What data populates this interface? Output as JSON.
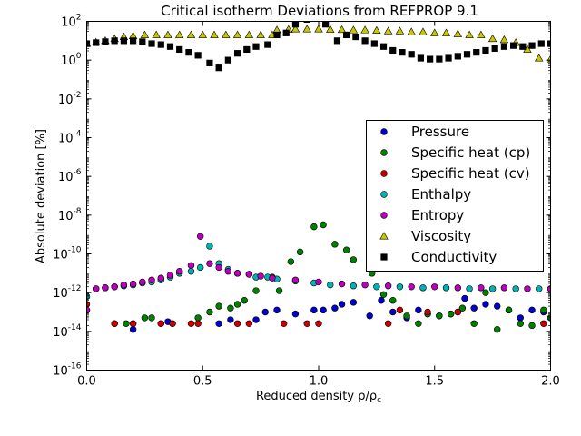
{
  "chart_data": {
    "type": "scatter",
    "title": "Critical isotherm Deviations from REFPROP 9.1",
    "xlabel": "Reduced density ρ/ρ",
    "xlabel_sub": "c",
    "ylabel": "Absolute deviation [%]",
    "xlim": [
      0.0,
      2.0
    ],
    "ylim_log10": [
      -16,
      2
    ],
    "y_scale": "log",
    "x_ticks": [
      "0.0",
      "0.5",
      "1.0",
      "1.5",
      "2.0"
    ],
    "y_ticks": [
      {
        "base": "10",
        "exp": "2"
      },
      {
        "base": "10",
        "exp": "0"
      },
      {
        "base": "10",
        "exp": "-2"
      },
      {
        "base": "10",
        "exp": "-4"
      },
      {
        "base": "10",
        "exp": "-6"
      },
      {
        "base": "10",
        "exp": "-8"
      },
      {
        "base": "10",
        "exp": "-10"
      },
      {
        "base": "10",
        "exp": "-12"
      },
      {
        "base": "10",
        "exp": "-14"
      },
      {
        "base": "10",
        "exp": "-16"
      }
    ],
    "legend_position": "right",
    "series": [
      {
        "name": "Pressure",
        "color": "#0000cc",
        "marker": "circle",
        "points": [
          [
            0.0,
            -12.9
          ],
          [
            0.2,
            -13.9
          ],
          [
            0.35,
            -13.5
          ],
          [
            0.57,
            -13.6
          ],
          [
            0.62,
            -13.4
          ],
          [
            0.73,
            -13.4
          ],
          [
            0.77,
            -13.0
          ],
          [
            0.82,
            -12.9
          ],
          [
            0.9,
            -13.1
          ],
          [
            0.98,
            -12.9
          ],
          [
            1.02,
            -12.9
          ],
          [
            1.07,
            -12.8
          ],
          [
            1.1,
            -12.6
          ],
          [
            1.15,
            -12.5
          ],
          [
            1.22,
            -13.2
          ],
          [
            1.27,
            -12.4
          ],
          [
            1.32,
            -13.0
          ],
          [
            1.38,
            -13.3
          ],
          [
            1.43,
            -12.9
          ],
          [
            1.47,
            -13.1
          ],
          [
            1.52,
            -13.2
          ],
          [
            1.57,
            -13.1
          ],
          [
            1.6,
            -13.0
          ],
          [
            1.63,
            -12.3
          ],
          [
            1.67,
            -12.8
          ],
          [
            1.72,
            -12.6
          ],
          [
            1.77,
            -12.7
          ],
          [
            1.82,
            -12.9
          ],
          [
            1.87,
            -13.3
          ],
          [
            1.92,
            -12.9
          ],
          [
            1.97,
            -13.0
          ],
          [
            2.0,
            -13.3
          ]
        ]
      },
      {
        "name": "Specific heat (cp)",
        "color": "#008000",
        "marker": "circle",
        "points": [
          [
            0.0,
            -12.2
          ],
          [
            0.12,
            -13.6
          ],
          [
            0.17,
            -13.6
          ],
          [
            0.2,
            -13.6
          ],
          [
            0.25,
            -13.3
          ],
          [
            0.28,
            -13.3
          ],
          [
            0.32,
            -13.6
          ],
          [
            0.37,
            -13.6
          ],
          [
            0.48,
            -13.3
          ],
          [
            0.53,
            -13.0
          ],
          [
            0.57,
            -12.7
          ],
          [
            0.62,
            -12.8
          ],
          [
            0.65,
            -12.6
          ],
          [
            0.68,
            -12.4
          ],
          [
            0.73,
            -11.9
          ],
          [
            0.8,
            -11.2
          ],
          [
            0.83,
            -11.9
          ],
          [
            0.88,
            -10.4
          ],
          [
            0.92,
            -9.9
          ],
          [
            0.98,
            -8.6
          ],
          [
            1.02,
            -8.5
          ],
          [
            1.07,
            -9.5
          ],
          [
            1.12,
            -9.8
          ],
          [
            1.15,
            -10.3
          ],
          [
            1.23,
            -11.0
          ],
          [
            1.28,
            -12.1
          ],
          [
            1.32,
            -12.4
          ],
          [
            1.38,
            -13.2
          ],
          [
            1.43,
            -13.6
          ],
          [
            1.47,
            -13.1
          ],
          [
            1.52,
            -13.2
          ],
          [
            1.57,
            -13.1
          ],
          [
            1.62,
            -12.8
          ],
          [
            1.67,
            -13.6
          ],
          [
            1.72,
            -12.0
          ],
          [
            1.77,
            -13.9
          ],
          [
            1.82,
            -12.9
          ],
          [
            1.87,
            -13.6
          ],
          [
            1.92,
            -13.7
          ],
          [
            1.97,
            -12.9
          ],
          [
            2.0,
            -13.3
          ]
        ]
      },
      {
        "name": "Specific heat (cv)",
        "color": "#cc0000",
        "marker": "circle",
        "points": [
          [
            0.0,
            -12.6
          ],
          [
            0.12,
            -13.6
          ],
          [
            0.2,
            -13.6
          ],
          [
            0.32,
            -13.6
          ],
          [
            0.37,
            -13.6
          ],
          [
            0.45,
            -13.6
          ],
          [
            0.48,
            -13.6
          ],
          [
            0.65,
            -13.6
          ],
          [
            0.7,
            -13.6
          ],
          [
            0.85,
            -13.6
          ],
          [
            0.95,
            -13.6
          ],
          [
            1.0,
            -13.6
          ],
          [
            1.3,
            -13.6
          ],
          [
            1.35,
            -12.9
          ],
          [
            1.47,
            -13.0
          ],
          [
            1.6,
            -13.0
          ],
          [
            1.97,
            -13.6
          ]
        ]
      },
      {
        "name": "Enthalpy",
        "color": "#00b3b3",
        "marker": "circle",
        "points": [
          [
            0.0,
            -12.2
          ],
          [
            0.04,
            -11.8
          ],
          [
            0.08,
            -11.75
          ],
          [
            0.12,
            -11.7
          ],
          [
            0.16,
            -11.65
          ],
          [
            0.2,
            -11.6
          ],
          [
            0.24,
            -11.5
          ],
          [
            0.28,
            -11.45
          ],
          [
            0.32,
            -11.35
          ],
          [
            0.36,
            -11.2
          ],
          [
            0.4,
            -11.0
          ],
          [
            0.45,
            -10.9
          ],
          [
            0.49,
            -10.7
          ],
          [
            0.53,
            -9.6
          ],
          [
            0.57,
            -10.5
          ],
          [
            0.61,
            -10.8
          ],
          [
            0.65,
            -11.0
          ],
          [
            0.7,
            -11.05
          ],
          [
            0.73,
            -11.2
          ],
          [
            0.78,
            -11.2
          ],
          [
            0.82,
            -11.3
          ],
          [
            0.9,
            -11.4
          ],
          [
            0.98,
            -11.5
          ],
          [
            1.05,
            -11.6
          ],
          [
            1.15,
            -11.65
          ],
          [
            1.25,
            -11.7
          ],
          [
            1.35,
            -11.7
          ],
          [
            1.45,
            -11.75
          ],
          [
            1.55,
            -11.75
          ],
          [
            1.65,
            -11.8
          ],
          [
            1.75,
            -11.8
          ],
          [
            1.85,
            -11.8
          ],
          [
            1.95,
            -11.8
          ],
          [
            2.0,
            -11.8
          ]
        ]
      },
      {
        "name": "Entropy",
        "color": "#bb00bb",
        "marker": "circle",
        "points": [
          [
            0.0,
            -12.9
          ],
          [
            0.04,
            -11.8
          ],
          [
            0.08,
            -11.75
          ],
          [
            0.12,
            -11.7
          ],
          [
            0.16,
            -11.6
          ],
          [
            0.2,
            -11.55
          ],
          [
            0.24,
            -11.45
          ],
          [
            0.28,
            -11.35
          ],
          [
            0.32,
            -11.25
          ],
          [
            0.36,
            -11.1
          ],
          [
            0.4,
            -10.9
          ],
          [
            0.45,
            -10.6
          ],
          [
            0.49,
            -9.1
          ],
          [
            0.53,
            -10.5
          ],
          [
            0.57,
            -10.7
          ],
          [
            0.61,
            -10.9
          ],
          [
            0.65,
            -11.0
          ],
          [
            0.7,
            -11.05
          ],
          [
            0.75,
            -11.15
          ],
          [
            0.8,
            -11.25
          ],
          [
            0.9,
            -11.35
          ],
          [
            1.0,
            -11.45
          ],
          [
            1.1,
            -11.55
          ],
          [
            1.2,
            -11.6
          ],
          [
            1.3,
            -11.65
          ],
          [
            1.4,
            -11.7
          ],
          [
            1.5,
            -11.7
          ],
          [
            1.6,
            -11.75
          ],
          [
            1.7,
            -11.75
          ],
          [
            1.8,
            -11.75
          ],
          [
            1.9,
            -11.8
          ],
          [
            2.0,
            -11.8
          ]
        ]
      },
      {
        "name": "Viscosity",
        "color": "#c8c800",
        "marker": "triangle",
        "points": [
          [
            0.0,
            0.85
          ],
          [
            0.04,
            0.92
          ],
          [
            0.08,
            1.0
          ],
          [
            0.12,
            1.1
          ],
          [
            0.16,
            1.2
          ],
          [
            0.2,
            1.25
          ],
          [
            0.25,
            1.3
          ],
          [
            0.3,
            1.3
          ],
          [
            0.35,
            1.3
          ],
          [
            0.4,
            1.3
          ],
          [
            0.45,
            1.3
          ],
          [
            0.5,
            1.3
          ],
          [
            0.55,
            1.3
          ],
          [
            0.6,
            1.3
          ],
          [
            0.65,
            1.3
          ],
          [
            0.7,
            1.3
          ],
          [
            0.75,
            1.3
          ],
          [
            0.8,
            1.3
          ],
          [
            0.82,
            1.55
          ],
          [
            0.87,
            1.58
          ],
          [
            0.9,
            1.6
          ],
          [
            0.95,
            1.6
          ],
          [
            1.0,
            1.6
          ],
          [
            1.05,
            1.58
          ],
          [
            1.1,
            1.57
          ],
          [
            1.15,
            1.55
          ],
          [
            1.2,
            1.55
          ],
          [
            1.25,
            1.53
          ],
          [
            1.3,
            1.5
          ],
          [
            1.35,
            1.5
          ],
          [
            1.4,
            1.45
          ],
          [
            1.45,
            1.45
          ],
          [
            1.5,
            1.4
          ],
          [
            1.55,
            1.4
          ],
          [
            1.6,
            1.35
          ],
          [
            1.65,
            1.3
          ],
          [
            1.7,
            1.3
          ],
          [
            1.75,
            1.1
          ],
          [
            1.8,
            1.05
          ],
          [
            1.85,
            0.9
          ],
          [
            1.9,
            0.55
          ],
          [
            1.95,
            0.1
          ],
          [
            2.0,
            0.05
          ]
        ]
      },
      {
        "name": "Conductivity",
        "color": "#000000",
        "marker": "square",
        "points": [
          [
            0.0,
            0.85
          ],
          [
            0.04,
            0.9
          ],
          [
            0.08,
            0.95
          ],
          [
            0.12,
            1.0
          ],
          [
            0.16,
            1.0
          ],
          [
            0.2,
            1.0
          ],
          [
            0.24,
            0.95
          ],
          [
            0.28,
            0.85
          ],
          [
            0.32,
            0.8
          ],
          [
            0.36,
            0.7
          ],
          [
            0.4,
            0.55
          ],
          [
            0.44,
            0.4
          ],
          [
            0.48,
            0.25
          ],
          [
            0.53,
            -0.15
          ],
          [
            0.57,
            -0.4
          ],
          [
            0.61,
            0.0
          ],
          [
            0.65,
            0.35
          ],
          [
            0.69,
            0.55
          ],
          [
            0.73,
            0.7
          ],
          [
            0.78,
            0.8
          ],
          [
            0.82,
            1.3
          ],
          [
            0.86,
            1.4
          ],
          [
            0.9,
            1.85
          ],
          [
            0.95,
            2.1
          ],
          [
            1.0,
            2.2
          ],
          [
            1.03,
            1.85
          ],
          [
            1.08,
            1.0
          ],
          [
            1.12,
            1.3
          ],
          [
            1.16,
            1.2
          ],
          [
            1.2,
            1.0
          ],
          [
            1.24,
            0.85
          ],
          [
            1.28,
            0.7
          ],
          [
            1.32,
            0.5
          ],
          [
            1.36,
            0.4
          ],
          [
            1.4,
            0.3
          ],
          [
            1.44,
            0.1
          ],
          [
            1.48,
            0.05
          ],
          [
            1.52,
            0.05
          ],
          [
            1.56,
            0.1
          ],
          [
            1.6,
            0.2
          ],
          [
            1.64,
            0.3
          ],
          [
            1.68,
            0.4
          ],
          [
            1.72,
            0.5
          ],
          [
            1.76,
            0.6
          ],
          [
            1.8,
            0.7
          ],
          [
            1.84,
            0.75
          ],
          [
            1.88,
            0.7
          ],
          [
            1.92,
            0.75
          ],
          [
            1.96,
            0.85
          ],
          [
            2.0,
            0.85
          ]
        ]
      }
    ]
  }
}
